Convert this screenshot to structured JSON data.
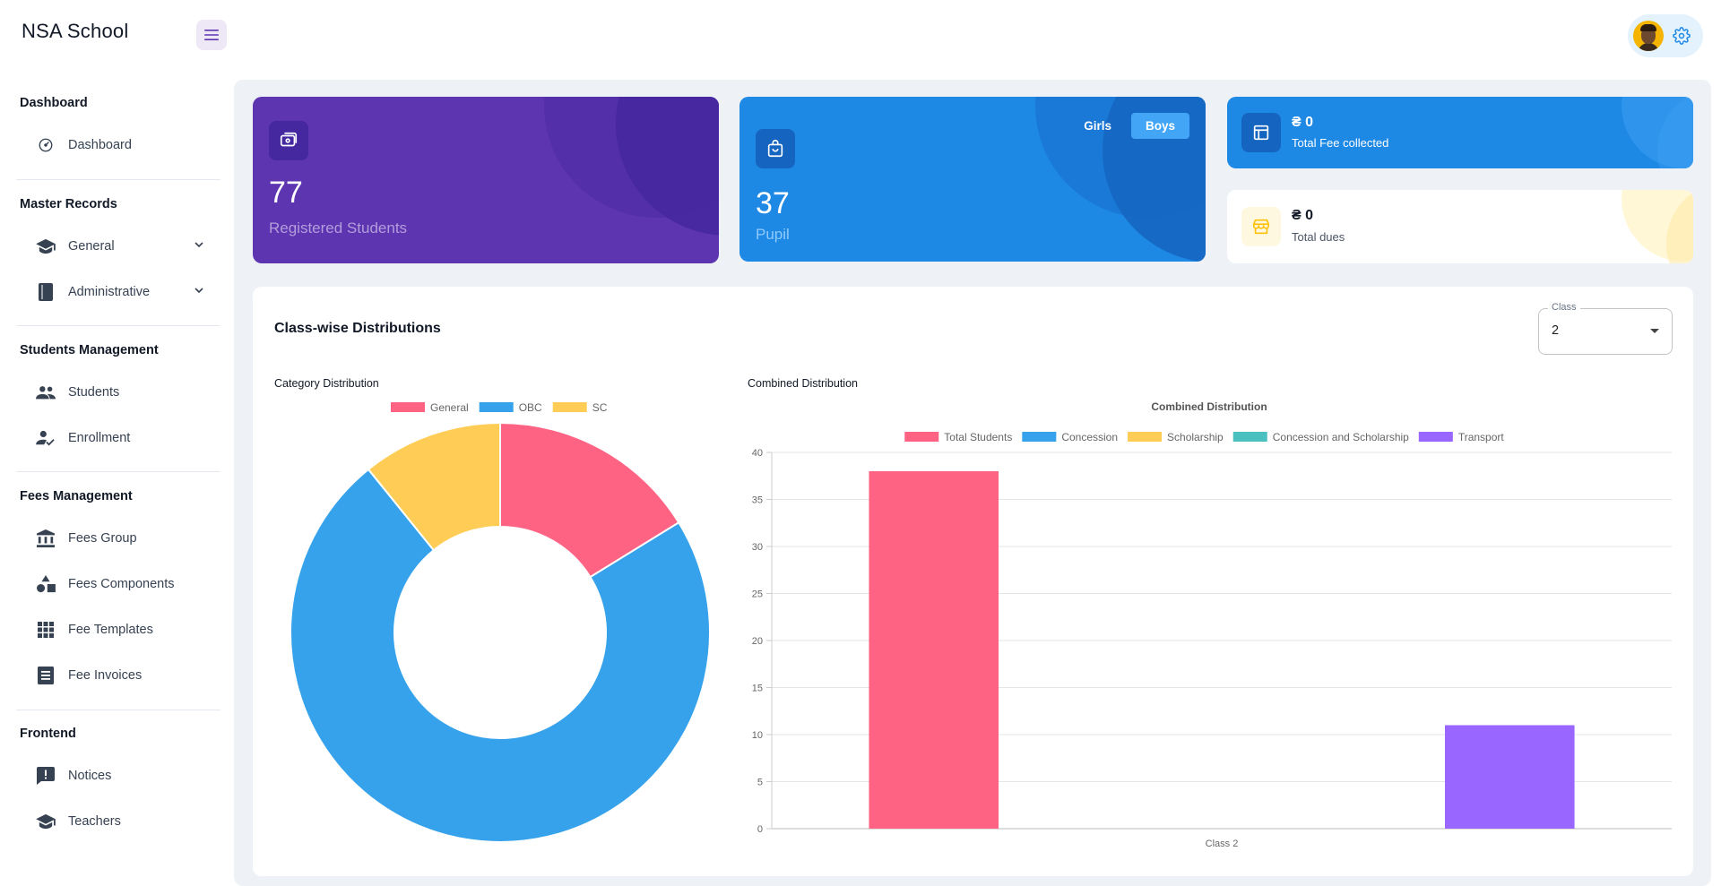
{
  "app": {
    "brand": "NSA School"
  },
  "sidebar": {
    "sections": [
      {
        "title": "Dashboard",
        "items": [
          {
            "label": "Dashboard",
            "icon": "dashboard-icon"
          }
        ]
      },
      {
        "title": "Master Records",
        "items": [
          {
            "label": "General",
            "icon": "graduation-cap-icon"
          },
          {
            "label": "Administrative",
            "icon": "book-icon"
          }
        ]
      },
      {
        "title": "Students Management",
        "items": [
          {
            "label": "Students",
            "icon": "people-icon"
          },
          {
            "label": "Enrollment",
            "icon": "person-check-icon"
          }
        ]
      },
      {
        "title": "Fees Management",
        "items": [
          {
            "label": "Fees Group",
            "icon": "bank-icon"
          },
          {
            "label": "Fees Components",
            "icon": "shapes-icon"
          },
          {
            "label": "Fee Templates",
            "icon": "grid-icon"
          },
          {
            "label": "Fee Invoices",
            "icon": "invoice-icon"
          }
        ]
      },
      {
        "title": "Frontend",
        "items": [
          {
            "label": "Notices",
            "icon": "notice-icon"
          },
          {
            "label": "Teachers",
            "icon": "graduation-cap-icon"
          }
        ]
      }
    ]
  },
  "cards": {
    "registered": {
      "value": "77",
      "label": "Registered Students"
    },
    "pupil": {
      "value": "37",
      "label": "Pupil",
      "toggle": [
        "Girls",
        "Boys"
      ],
      "active": "Boys"
    },
    "fee_collected": {
      "amount": "₴ 0",
      "label": "Total Fee collected"
    },
    "dues": {
      "amount": "₴ 0",
      "label": "Total dues"
    }
  },
  "distribution": {
    "title": "Class-wise Distributions",
    "class_select": {
      "label": "Class",
      "value": "2"
    },
    "category_heading": "Category Distribution",
    "combined_heading": "Combined Distribution"
  },
  "chart_data": [
    {
      "type": "pie",
      "variant": "doughnut",
      "title": "",
      "legend_position": "top",
      "categories": [
        "General",
        "OBC",
        "SC"
      ],
      "values": [
        6,
        27,
        4
      ],
      "colors": [
        "#ff6384",
        "#36a2eb",
        "#ffcd56"
      ]
    },
    {
      "type": "bar",
      "title": "Combined Distribution",
      "legend_position": "top",
      "categories": [
        "Class 2"
      ],
      "ylim": [
        0,
        40
      ],
      "yticks": [
        0,
        5,
        10,
        15,
        20,
        25,
        30,
        35,
        40
      ],
      "grid": true,
      "series": [
        {
          "name": "Total Students",
          "values": [
            38
          ],
          "color": "#ff6384"
        },
        {
          "name": "Concession",
          "values": [
            0
          ],
          "color": "#36a2eb"
        },
        {
          "name": "Scholarship",
          "values": [
            0
          ],
          "color": "#ffcd56"
        },
        {
          "name": "Concession and Scholarship",
          "values": [
            0
          ],
          "color": "#4bc0c0"
        },
        {
          "name": "Transport",
          "values": [
            11
          ],
          "color": "#9966ff"
        }
      ]
    }
  ]
}
